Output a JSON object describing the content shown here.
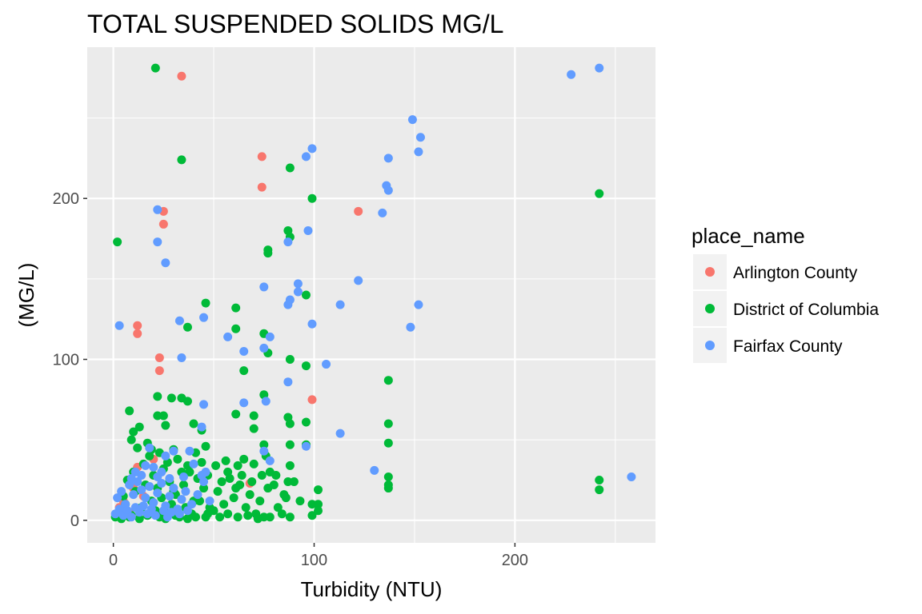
{
  "chart_data": {
    "type": "scatter",
    "title": "TOTAL SUSPENDED SOLIDS MG/L",
    "xlabel": "Turbidity (NTU)",
    "ylabel": "(MG/L)",
    "xlim": [
      -13,
      270
    ],
    "ylim": [
      -14,
      294
    ],
    "x_ticks": [
      0,
      100,
      200
    ],
    "y_ticks": [
      0,
      100,
      200
    ],
    "grid": true,
    "legend": {
      "title": "place_name",
      "position": "right"
    },
    "colors": {
      "Arlington County": "#F8766D",
      "District of Columbia": "#00BA38",
      "Fairfax County": "#619CFF",
      "panel_background": "#EBEBEB",
      "grid_line": "#FFFFFF"
    },
    "series": [
      {
        "name": "Arlington County",
        "points": [
          [
            34,
            276
          ],
          [
            74,
            226
          ],
          [
            74,
            207
          ],
          [
            25,
            192
          ],
          [
            25,
            184
          ],
          [
            122,
            192
          ],
          [
            12,
            121
          ],
          [
            12,
            116
          ],
          [
            23,
            101
          ],
          [
            23,
            93
          ],
          [
            99,
            75
          ],
          [
            68,
            23
          ],
          [
            20,
            38
          ],
          [
            12,
            33
          ],
          [
            5,
            12
          ],
          [
            8,
            5
          ],
          [
            22,
            3
          ],
          [
            3,
            8
          ],
          [
            15,
            15
          ],
          [
            10,
            20
          ]
        ]
      },
      {
        "name": "District of Columbia",
        "points": [
          [
            21,
            281
          ],
          [
            34,
            224
          ],
          [
            88,
            219
          ],
          [
            99,
            200
          ],
          [
            242,
            203
          ],
          [
            2,
            173
          ],
          [
            87,
            180
          ],
          [
            88,
            176
          ],
          [
            77,
            168
          ],
          [
            77,
            166
          ],
          [
            96,
            140
          ],
          [
            61,
            132
          ],
          [
            46,
            135
          ],
          [
            37,
            120
          ],
          [
            61,
            119
          ],
          [
            75,
            116
          ],
          [
            77,
            104
          ],
          [
            88,
            100
          ],
          [
            65,
            93
          ],
          [
            96,
            96
          ],
          [
            137,
            87
          ],
          [
            34,
            76
          ],
          [
            37,
            74
          ],
          [
            29,
            76
          ],
          [
            22,
            77
          ],
          [
            75,
            78
          ],
          [
            8,
            68
          ],
          [
            22,
            65
          ],
          [
            25,
            65
          ],
          [
            61,
            66
          ],
          [
            70,
            65
          ],
          [
            87,
            64
          ],
          [
            88,
            60
          ],
          [
            96,
            61
          ],
          [
            137,
            60
          ],
          [
            13,
            58
          ],
          [
            26,
            59
          ],
          [
            70,
            57
          ],
          [
            40,
            60
          ],
          [
            44,
            56
          ],
          [
            9,
            50
          ],
          [
            10,
            55
          ],
          [
            137,
            48
          ],
          [
            96,
            47
          ],
          [
            88,
            47
          ],
          [
            75,
            47
          ],
          [
            46,
            46
          ],
          [
            137,
            27
          ],
          [
            242,
            25
          ],
          [
            242,
            19
          ],
          [
            137,
            22
          ],
          [
            137,
            20
          ],
          [
            102,
            19
          ],
          [
            88,
            34
          ],
          [
            87,
            24
          ],
          [
            99,
            10
          ],
          [
            102,
            10
          ],
          [
            102,
            6
          ],
          [
            99,
            3
          ],
          [
            75,
            2
          ],
          [
            61,
            20
          ],
          [
            56,
            37
          ],
          [
            65,
            38
          ],
          [
            70,
            35
          ],
          [
            76,
            40
          ],
          [
            78,
            30
          ],
          [
            5,
            15
          ],
          [
            7,
            25
          ],
          [
            10,
            30
          ],
          [
            12,
            45
          ],
          [
            15,
            35
          ],
          [
            18,
            40
          ],
          [
            20,
            28
          ],
          [
            22,
            20
          ],
          [
            25,
            32
          ],
          [
            28,
            24
          ],
          [
            30,
            18
          ],
          [
            32,
            38
          ],
          [
            35,
            22
          ],
          [
            38,
            30
          ],
          [
            40,
            12
          ],
          [
            42,
            26
          ],
          [
            45,
            20
          ],
          [
            48,
            8
          ],
          [
            3,
            5
          ],
          [
            6,
            10
          ],
          [
            9,
            3
          ],
          [
            11,
            18
          ],
          [
            14,
            8
          ],
          [
            16,
            22
          ],
          [
            19,
            12
          ],
          [
            21,
            6
          ],
          [
            24,
            14
          ],
          [
            27,
            4
          ],
          [
            29,
            10
          ],
          [
            31,
            16
          ],
          [
            33,
            2
          ],
          [
            36,
            8
          ],
          [
            39,
            4
          ],
          [
            43,
            12
          ],
          [
            46,
            2
          ],
          [
            50,
            6
          ],
          [
            52,
            18
          ],
          [
            55,
            10
          ],
          [
            58,
            26
          ],
          [
            60,
            14
          ],
          [
            63,
            22
          ],
          [
            66,
            8
          ],
          [
            68,
            16
          ],
          [
            71,
            4
          ],
          [
            73,
            12
          ],
          [
            80,
            22
          ],
          [
            82,
            8
          ],
          [
            85,
            16
          ],
          [
            90,
            24
          ],
          [
            93,
            12
          ],
          [
            1,
            2
          ],
          [
            2,
            4
          ],
          [
            4,
            1
          ],
          [
            8,
            2
          ],
          [
            13,
            1
          ],
          [
            17,
            3
          ],
          [
            23,
            2
          ],
          [
            26,
            1
          ],
          [
            31,
            3
          ],
          [
            37,
            1
          ],
          [
            41,
            2
          ],
          [
            47,
            4
          ],
          [
            53,
            2
          ],
          [
            57,
            4
          ],
          [
            62,
            2
          ],
          [
            67,
            3
          ],
          [
            72,
            1
          ],
          [
            78,
            2
          ],
          [
            84,
            4
          ],
          [
            88,
            2
          ],
          [
            17,
            48
          ],
          [
            19,
            44
          ],
          [
            23,
            42
          ],
          [
            27,
            36
          ],
          [
            30,
            44
          ],
          [
            34,
            30
          ],
          [
            37,
            34
          ],
          [
            41,
            42
          ],
          [
            44,
            36
          ],
          [
            47,
            28
          ],
          [
            51,
            34
          ],
          [
            54,
            24
          ],
          [
            57,
            30
          ],
          [
            62,
            34
          ],
          [
            64,
            28
          ],
          [
            69,
            24
          ],
          [
            74,
            28
          ],
          [
            77,
            20
          ],
          [
            81,
            28
          ],
          [
            86,
            14
          ]
        ]
      },
      {
        "name": "Fairfax County",
        "points": [
          [
            228,
            277
          ],
          [
            242,
            281
          ],
          [
            149,
            249
          ],
          [
            153,
            238
          ],
          [
            152,
            229
          ],
          [
            99,
            231
          ],
          [
            96,
            226
          ],
          [
            137,
            225
          ],
          [
            136,
            208
          ],
          [
            137,
            205
          ],
          [
            134,
            191
          ],
          [
            22,
            193
          ],
          [
            22,
            173
          ],
          [
            87,
            173
          ],
          [
            97,
            180
          ],
          [
            26,
            160
          ],
          [
            75,
            145
          ],
          [
            92,
            147
          ],
          [
            92,
            142
          ],
          [
            88,
            137
          ],
          [
            87,
            134
          ],
          [
            122,
            149
          ],
          [
            113,
            134
          ],
          [
            152,
            134
          ],
          [
            3,
            121
          ],
          [
            33,
            124
          ],
          [
            45,
            126
          ],
          [
            99,
            122
          ],
          [
            148,
            120
          ],
          [
            57,
            114
          ],
          [
            78,
            114
          ],
          [
            75,
            107
          ],
          [
            65,
            105
          ],
          [
            34,
            101
          ],
          [
            106,
            97
          ],
          [
            87,
            86
          ],
          [
            45,
            72
          ],
          [
            65,
            73
          ],
          [
            76,
            74
          ],
          [
            44,
            58
          ],
          [
            113,
            54
          ],
          [
            96,
            46
          ],
          [
            130,
            31
          ],
          [
            258,
            27
          ],
          [
            75,
            43
          ],
          [
            78,
            37
          ],
          [
            18,
            45
          ],
          [
            20,
            33
          ],
          [
            26,
            40
          ],
          [
            30,
            43
          ],
          [
            38,
            43
          ],
          [
            40,
            35
          ],
          [
            2,
            14
          ],
          [
            4,
            18
          ],
          [
            6,
            10
          ],
          [
            8,
            22
          ],
          [
            10,
            16
          ],
          [
            12,
            24
          ],
          [
            14,
            19
          ],
          [
            16,
            14
          ],
          [
            18,
            21
          ],
          [
            20,
            11
          ],
          [
            22,
            17
          ],
          [
            24,
            23
          ],
          [
            26,
            9
          ],
          [
            28,
            15
          ],
          [
            30,
            20
          ],
          [
            32,
            7
          ],
          [
            34,
            13
          ],
          [
            36,
            18
          ],
          [
            39,
            10
          ],
          [
            42,
            16
          ],
          [
            45,
            24
          ],
          [
            48,
            12
          ],
          [
            1,
            4
          ],
          [
            3,
            7
          ],
          [
            5,
            3
          ],
          [
            7,
            6
          ],
          [
            9,
            2
          ],
          [
            11,
            8
          ],
          [
            13,
            5
          ],
          [
            15,
            9
          ],
          [
            17,
            4
          ],
          [
            19,
            7
          ],
          [
            21,
            3
          ],
          [
            25,
            6
          ],
          [
            27,
            2
          ],
          [
            29,
            5
          ],
          [
            33,
            4
          ],
          [
            37,
            6
          ],
          [
            9,
            26
          ],
          [
            11,
            30
          ],
          [
            14,
            28
          ],
          [
            16,
            34
          ],
          [
            22,
            27
          ],
          [
            24,
            30
          ],
          [
            28,
            26
          ],
          [
            44,
            28
          ],
          [
            46,
            30
          ],
          [
            35,
            27
          ]
        ]
      }
    ]
  }
}
